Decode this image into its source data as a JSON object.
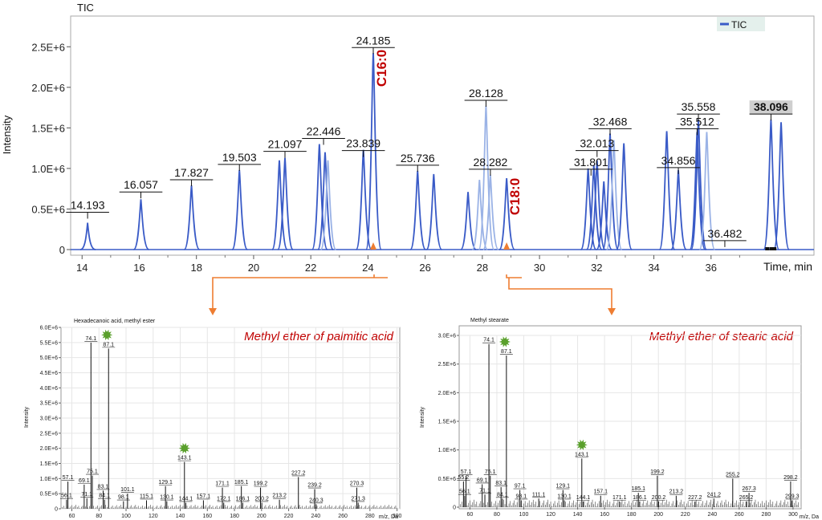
{
  "colors": {
    "tic_line": "#3a5bc7",
    "tic_line_light": "#9bb3e6",
    "annotation_red": "#c00000",
    "connector_orange": "#ee7d31",
    "star_green": "#5aa02c",
    "grid": "#e6e6e6",
    "legend_bg": "#e4f0ec"
  },
  "chart_data": [
    {
      "id": "tic",
      "type": "line",
      "title": "TIC",
      "xlabel": "Time, min",
      "ylabel": "Intensity",
      "xlim": [
        13.6,
        39.6
      ],
      "ylim": [
        0,
        2.75
      ],
      "x_ticks": [
        14,
        16,
        18,
        20,
        22,
        24,
        26,
        28,
        30,
        32,
        34,
        36
      ],
      "y_ticks": [
        {
          "value": 0,
          "label": "0"
        },
        {
          "value": 0.5,
          "label": "0.5E+6"
        },
        {
          "value": 1.0,
          "label": "1.0E+6"
        },
        {
          "value": 1.5,
          "label": "1.5E+6"
        },
        {
          "value": 2.0,
          "label": "2.0E+6"
        },
        {
          "value": 2.5,
          "label": "2.5E+6"
        }
      ],
      "legend": {
        "entries": [
          "TIC"
        ],
        "position": "top-right"
      },
      "peaks": [
        {
          "t": 14.193,
          "h": 0.33,
          "shade": "dark"
        },
        {
          "t": 16.057,
          "h": 0.62,
          "shade": "dark"
        },
        {
          "t": 17.827,
          "h": 0.79,
          "shade": "dark"
        },
        {
          "t": 19.503,
          "h": 0.98,
          "shade": "dark"
        },
        {
          "t": 20.9,
          "h": 1.1,
          "shade": "dark"
        },
        {
          "t": 21.097,
          "h": 1.13,
          "shade": "dark"
        },
        {
          "t": 22.3,
          "h": 1.3,
          "shade": "dark"
        },
        {
          "t": 22.5,
          "h": 1.2,
          "shade": "dark"
        },
        {
          "t": 22.6,
          "h": 1.1,
          "shade": "light"
        },
        {
          "t": 23.839,
          "h": 1.23,
          "shade": "dark"
        },
        {
          "t": 24.185,
          "h": 2.42,
          "shade": "dark"
        },
        {
          "t": 25.736,
          "h": 0.97,
          "shade": "dark"
        },
        {
          "t": 26.3,
          "h": 0.93,
          "shade": "dark"
        },
        {
          "t": 27.5,
          "h": 0.71,
          "shade": "dark"
        },
        {
          "t": 27.9,
          "h": 0.86,
          "shade": "light"
        },
        {
          "t": 28.128,
          "h": 1.77,
          "shade": "light"
        },
        {
          "t": 28.282,
          "h": 0.92,
          "shade": "light"
        },
        {
          "t": 28.85,
          "h": 0.88,
          "shade": "dark"
        },
        {
          "t": 31.7,
          "h": 1.0,
          "shade": "dark"
        },
        {
          "t": 31.9,
          "h": 1.04,
          "shade": "dark"
        },
        {
          "t": 32.013,
          "h": 1.1,
          "shade": "dark"
        },
        {
          "t": 32.25,
          "h": 0.84,
          "shade": "dark"
        },
        {
          "t": 32.468,
          "h": 1.43,
          "shade": "dark"
        },
        {
          "t": 32.6,
          "h": 1.35,
          "shade": "light"
        },
        {
          "t": 32.95,
          "h": 1.31,
          "shade": "dark"
        },
        {
          "t": 34.45,
          "h": 1.46,
          "shade": "dark"
        },
        {
          "t": 34.856,
          "h": 0.98,
          "shade": "dark"
        },
        {
          "t": 35.512,
          "h": 1.45,
          "shade": "dark"
        },
        {
          "t": 35.558,
          "h": 1.6,
          "shade": "dark"
        },
        {
          "t": 35.85,
          "h": 1.45,
          "shade": "light"
        },
        {
          "t": 38.096,
          "h": 1.6,
          "shade": "dark"
        },
        {
          "t": 38.45,
          "h": 1.57,
          "shade": "dark"
        }
      ],
      "peak_labels": [
        {
          "text": "14.193",
          "t": 14.193,
          "y": 0.47
        },
        {
          "text": "16.057",
          "t": 16.057,
          "y": 0.72
        },
        {
          "text": "17.827",
          "t": 17.827,
          "y": 0.87
        },
        {
          "text": "19.503",
          "t": 19.503,
          "y": 1.06
        },
        {
          "text": "21.097",
          "t": 21.097,
          "y": 1.22
        },
        {
          "text": "22.446",
          "t": 22.446,
          "y": 1.38
        },
        {
          "text": "23.839",
          "t": 23.839,
          "y": 1.23
        },
        {
          "text": "24.185",
          "t": 24.185,
          "y": 2.5
        },
        {
          "text": "25.736",
          "t": 25.736,
          "y": 1.05
        },
        {
          "text": "28.128",
          "t": 28.128,
          "y": 1.85
        },
        {
          "text": "28.282",
          "t": 28.282,
          "y": 1.0
        },
        {
          "text": "31.801",
          "t": 31.801,
          "y": 1.0
        },
        {
          "text": "32.013",
          "t": 32.013,
          "y": 1.23
        },
        {
          "text": "32.468",
          "t": 32.468,
          "y": 1.5
        },
        {
          "text": "34.856",
          "t": 34.856,
          "y": 1.02
        },
        {
          "text": "35.512",
          "t": 35.512,
          "y": 1.5
        },
        {
          "text": "35.558",
          "t": 35.558,
          "y": 1.68
        },
        {
          "text": "36.482",
          "t": 36.482,
          "y": 0.12
        },
        {
          "text": "38.096",
          "t": 38.096,
          "y": 1.68,
          "highlight": true
        }
      ],
      "annotations": [
        {
          "text": "C16:0",
          "t": 24.185,
          "kind": "C16"
        },
        {
          "text": "C18:0",
          "t": 28.85,
          "kind": "C18"
        }
      ]
    },
    {
      "id": "ms1",
      "type": "bar",
      "title": "Hexadecanoic acid, methyl ester",
      "annotation": "Methyl ether of palmitic acid",
      "xlabel": "m/z, Da",
      "ylabel": "Intensity",
      "xlim": [
        52,
        302
      ],
      "ylim": [
        0,
        6.0
      ],
      "x_ticks": [
        60,
        80,
        100,
        120,
        140,
        160,
        180,
        200,
        220,
        240,
        260,
        280,
        300
      ],
      "y_ticks": [
        {
          "value": 0,
          "label": "0"
        },
        {
          "value": 0.5,
          "label": "0.5E+6"
        },
        {
          "value": 1.0,
          "label": "1.0E+6"
        },
        {
          "value": 1.5,
          "label": "1.5E+6"
        },
        {
          "value": 2.0,
          "label": "2.0E+6"
        },
        {
          "value": 2.5,
          "label": "2.5E+6"
        },
        {
          "value": 3.0,
          "label": "3.0E+6"
        },
        {
          "value": 3.5,
          "label": "3.5E+6"
        },
        {
          "value": 4.0,
          "label": "4.0E+6"
        },
        {
          "value": 4.5,
          "label": "4.5E+6"
        },
        {
          "value": 5.0,
          "label": "5.0E+6"
        },
        {
          "value": 5.5,
          "label": "5.5E+6"
        },
        {
          "value": 6.0,
          "label": "6.0E+6"
        }
      ],
      "peaks": [
        {
          "mz": 56.1,
          "v": 0.3,
          "label": "56.1"
        },
        {
          "mz": 57.1,
          "v": 0.9,
          "label": "57.1"
        },
        {
          "mz": 69.1,
          "v": 0.8,
          "label": "69.1"
        },
        {
          "mz": 71.1,
          "v": 0.35,
          "label": "71.1"
        },
        {
          "mz": 74.1,
          "v": 5.5,
          "label": "74.1"
        },
        {
          "mz": 75.1,
          "v": 1.1,
          "label": "75.1"
        },
        {
          "mz": 83.1,
          "v": 0.6,
          "label": "83.1"
        },
        {
          "mz": 84.1,
          "v": 0.3,
          "label": "84.1"
        },
        {
          "mz": 87.1,
          "v": 5.3,
          "label": "87.1"
        },
        {
          "mz": 98.1,
          "v": 0.25,
          "label": "98.1"
        },
        {
          "mz": 101.1,
          "v": 0.5,
          "label": "101.1"
        },
        {
          "mz": 115.1,
          "v": 0.28,
          "label": "115.1"
        },
        {
          "mz": 129.1,
          "v": 0.75,
          "label": "129.1"
        },
        {
          "mz": 130.1,
          "v": 0.25,
          "label": "130.1"
        },
        {
          "mz": 143.1,
          "v": 1.55,
          "label": "143.1"
        },
        {
          "mz": 144.1,
          "v": 0.2,
          "label": "144.1"
        },
        {
          "mz": 157.1,
          "v": 0.28,
          "label": "157.1"
        },
        {
          "mz": 171.1,
          "v": 0.7,
          "label": "171.1"
        },
        {
          "mz": 172.1,
          "v": 0.2,
          "label": "172.1"
        },
        {
          "mz": 185.1,
          "v": 0.75,
          "label": "185.1"
        },
        {
          "mz": 186.1,
          "v": 0.2,
          "label": "186.1"
        },
        {
          "mz": 199.2,
          "v": 0.7,
          "label": "199.2"
        },
        {
          "mz": 200.2,
          "v": 0.2,
          "label": "200.2"
        },
        {
          "mz": 213.2,
          "v": 0.3,
          "label": "213.2"
        },
        {
          "mz": 227.2,
          "v": 1.05,
          "label": "227.2"
        },
        {
          "mz": 239.2,
          "v": 0.65,
          "label": "239.2"
        },
        {
          "mz": 240.3,
          "v": 0.15,
          "label": "240.3"
        },
        {
          "mz": 270.3,
          "v": 0.7,
          "label": "270.3"
        },
        {
          "mz": 271.3,
          "v": 0.2,
          "label": "271.3"
        }
      ],
      "stars": [
        87.1,
        143.1
      ]
    },
    {
      "id": "ms2",
      "type": "bar",
      "title": "Methyl stearate",
      "annotation": "Methyl ether of stearic acid",
      "xlabel": "m/z, Da",
      "ylabel": "Intensity",
      "xlim": [
        52,
        306
      ],
      "ylim": [
        0,
        3.0
      ],
      "x_ticks": [
        60,
        80,
        100,
        120,
        140,
        160,
        180,
        200,
        220,
        240,
        260,
        280,
        300
      ],
      "y_ticks": [
        {
          "value": 0,
          "label": "0"
        },
        {
          "value": 0.5,
          "label": "0.5E+6"
        },
        {
          "value": 1.0,
          "label": "1.0E+6"
        },
        {
          "value": 1.5,
          "label": "1.5E+6"
        },
        {
          "value": 2.0,
          "label": "2.0E+6"
        },
        {
          "value": 2.5,
          "label": "2.5E+6"
        },
        {
          "value": 3.0,
          "label": "3.0E+6"
        }
      ],
      "peaks": [
        {
          "mz": 56.1,
          "v": 0.2,
          "label": "56.1"
        },
        {
          "mz": 57.1,
          "v": 0.55,
          "label": "57.1"
        },
        {
          "mz": 55.2,
          "v": 0.45,
          "label": "55.2"
        },
        {
          "mz": 69.1,
          "v": 0.4,
          "label": "69.1"
        },
        {
          "mz": 71.1,
          "v": 0.22,
          "label": "71.1"
        },
        {
          "mz": 74.1,
          "v": 2.85,
          "label": "74.1"
        },
        {
          "mz": 75.1,
          "v": 0.55,
          "label": "75.1"
        },
        {
          "mz": 83.1,
          "v": 0.35,
          "label": "83.1"
        },
        {
          "mz": 84.1,
          "v": 0.15,
          "label": "84.1"
        },
        {
          "mz": 87.1,
          "v": 2.65,
          "label": "87.1"
        },
        {
          "mz": 97.1,
          "v": 0.3,
          "label": "97.1"
        },
        {
          "mz": 98.1,
          "v": 0.12,
          "label": "98.1"
        },
        {
          "mz": 111.1,
          "v": 0.15,
          "label": "111.1"
        },
        {
          "mz": 129.1,
          "v": 0.3,
          "label": "129.1"
        },
        {
          "mz": 130.1,
          "v": 0.12,
          "label": "130.1"
        },
        {
          "mz": 143.1,
          "v": 0.85,
          "label": "143.1"
        },
        {
          "mz": 144.1,
          "v": 0.1,
          "label": "144.1"
        },
        {
          "mz": 157.1,
          "v": 0.2,
          "label": "157.1"
        },
        {
          "mz": 171.1,
          "v": 0.1,
          "label": "171.1"
        },
        {
          "mz": 185.1,
          "v": 0.25,
          "label": "185.1"
        },
        {
          "mz": 186.1,
          "v": 0.1,
          "label": "186.1"
        },
        {
          "mz": 199.2,
          "v": 0.55,
          "label": "199.2"
        },
        {
          "mz": 200.2,
          "v": 0.1,
          "label": "200.2"
        },
        {
          "mz": 213.2,
          "v": 0.2,
          "label": "213.2"
        },
        {
          "mz": 227.2,
          "v": 0.1,
          "label": "227.2"
        },
        {
          "mz": 241.2,
          "v": 0.15,
          "label": "241.2"
        },
        {
          "mz": 255.2,
          "v": 0.5,
          "label": "255.2"
        },
        {
          "mz": 265.2,
          "v": 0.1,
          "label": "265.2"
        },
        {
          "mz": 267.3,
          "v": 0.25,
          "label": "267.3"
        },
        {
          "mz": 298.2,
          "v": 0.45,
          "label": "298.2"
        },
        {
          "mz": 299.3,
          "v": 0.12,
          "label": "299.3"
        }
      ],
      "stars": [
        87.1,
        143.1
      ]
    }
  ]
}
